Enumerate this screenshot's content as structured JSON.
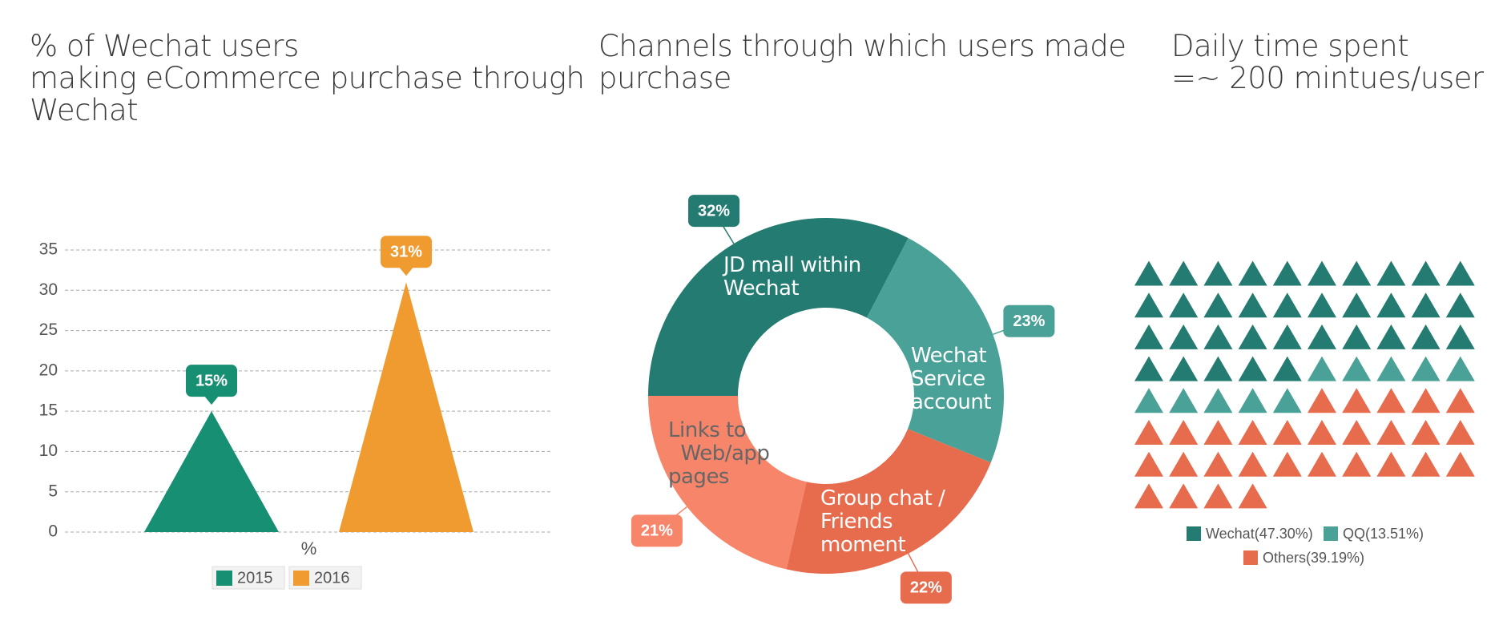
{
  "chart_data": [
    {
      "type": "bar",
      "title": "% of Wechat users\nmaking eCommerce purchase through\nWechat",
      "categories": [
        "%"
      ],
      "series": [
        {
          "name": "2015",
          "color": "#178f73",
          "values": [
            15
          ],
          "value_labels": [
            "15%"
          ]
        },
        {
          "name": "2016",
          "color": "#f09b2f",
          "values": [
            31
          ],
          "value_labels": [
            "31%"
          ]
        }
      ],
      "ylim": [
        0,
        35
      ],
      "yticks": [
        0,
        5,
        10,
        15,
        20,
        25,
        30,
        35
      ],
      "grid": true,
      "legend": "bottom"
    },
    {
      "type": "pie",
      "title": "Channels through which users made\npurchase",
      "categories": [
        "JD mall within\nWechat",
        "Wechat\nService\naccount",
        "Group chat /\nFriends\nmoment",
        "Links to\n  Web/app\npages"
      ],
      "values": [
        32,
        23,
        22,
        21
      ],
      "value_labels": [
        "32%",
        "23%",
        "22%",
        "21%"
      ],
      "colors": [
        "#237b72",
        "#4aa197",
        "#e76c4e",
        "#f7856a"
      ],
      "donut": true
    },
    {
      "type": "waffle",
      "title": "Daily time spent\n=~ 200 mintues/user",
      "series": [
        {
          "name": "Wechat(47.30%)",
          "color": "#237b72",
          "values": [
            35
          ]
        },
        {
          "name": "QQ(13.51%)",
          "color": "#4aa197",
          "values": [
            10
          ]
        },
        {
          "name": "Others(39.19%)",
          "color": "#e76c4e",
          "values": [
            29
          ]
        }
      ]
    }
  ]
}
